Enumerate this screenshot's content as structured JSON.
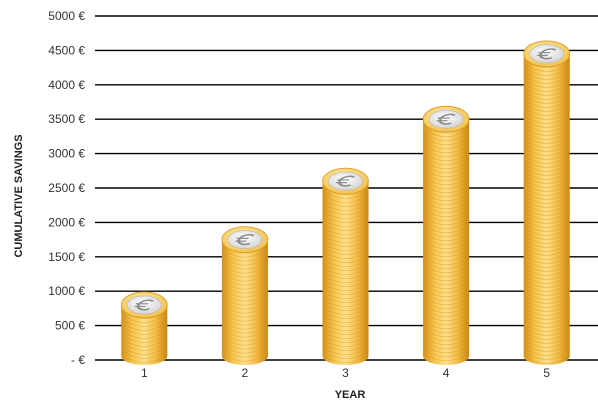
{
  "chart_data": {
    "type": "bar",
    "xlabel": "YEAR",
    "ylabel": "CUMULATIVE SAVINGS",
    "categories": [
      "1",
      "2",
      "3",
      "4",
      "5"
    ],
    "values": [
      800,
      1750,
      2600,
      3500,
      4450
    ],
    "ylim": [
      0,
      5000
    ],
    "y_ticks": [
      {
        "value": 0,
        "label": "- €"
      },
      {
        "value": 500,
        "label": "500 €"
      },
      {
        "value": 1000,
        "label": "1000 €"
      },
      {
        "value": 1500,
        "label": "1500 €"
      },
      {
        "value": 2000,
        "label": "2000 €"
      },
      {
        "value": 2500,
        "label": "2500 €"
      },
      {
        "value": 3000,
        "label": "3000 €"
      },
      {
        "value": 3500,
        "label": "3500 €"
      },
      {
        "value": 4000,
        "label": "4000 €"
      },
      {
        "value": 4500,
        "label": "4500 €"
      },
      {
        "value": 5000,
        "label": "5000 €"
      }
    ],
    "grid": true,
    "bar_style": "stacked euro coins",
    "colors": {
      "coin_gold": "#f2c04a",
      "coin_dark": "#d99a1e",
      "coin_light": "#fbe08a",
      "coin_face": "#e4e4e4",
      "gridline": "#000000"
    }
  }
}
